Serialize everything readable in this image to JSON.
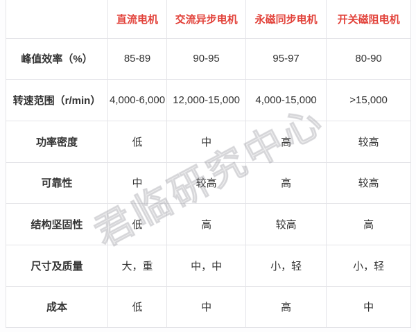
{
  "colors": {
    "page_bg": "#fdfdfe",
    "accent_red": "#e2423a",
    "text_dark": "#333333",
    "border": "#e4e4e8",
    "watermark_gray": "#8a8a92"
  },
  "watermark": {
    "text": "君临研究中心"
  },
  "chart_data": {
    "type": "table",
    "title": "",
    "columns": [
      "直流电机",
      "交流异步电机",
      "永磁同步电机",
      "开关磁阻电机"
    ],
    "rows": [
      [
        "峰值效率（%）",
        "85-89",
        "90-95",
        "95-97",
        "80-90"
      ],
      [
        "转速范围（r/min）",
        "4,000-6,000",
        "12,000-15,000",
        "4,000-15,000",
        ">15,000"
      ],
      [
        "功率密度",
        "低",
        "中",
        "高",
        "较高"
      ],
      [
        "可靠性",
        "中",
        "较高",
        "高",
        "较高"
      ],
      [
        "结构坚固性",
        "低",
        "高",
        "较高",
        "高"
      ],
      [
        "尺寸及质量",
        "大，重",
        "中，中",
        "小，轻",
        "小，轻"
      ],
      [
        "成本",
        "低",
        "中",
        "高",
        "中"
      ]
    ]
  }
}
